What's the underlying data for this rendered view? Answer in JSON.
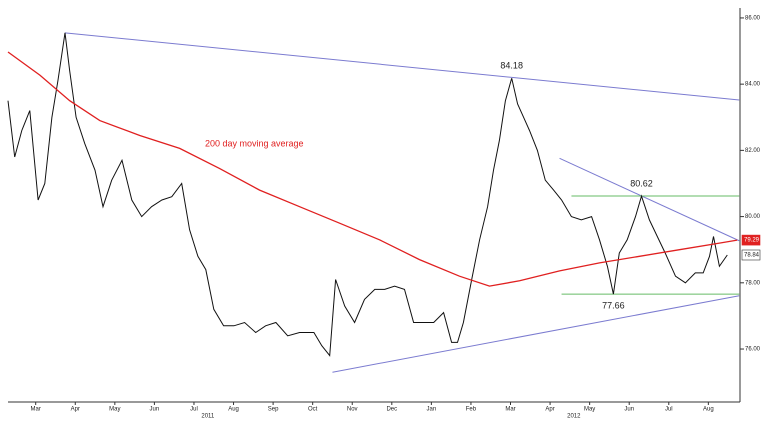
{
  "chart_data": {
    "type": "line",
    "xlim": [
      -0.2,
      18.3
    ],
    "ylim": [
      74.4,
      86.3
    ],
    "xticks": [
      {
        "value": 0.5,
        "label": "Mar"
      },
      {
        "value": 1.5,
        "label": "Apr"
      },
      {
        "value": 2.5,
        "label": "May"
      },
      {
        "value": 3.5,
        "label": "Jun"
      },
      {
        "value": 4.5,
        "label": "Jul"
      },
      {
        "value": 5.5,
        "label": "Aug"
      },
      {
        "value": 6.5,
        "label": "Sep"
      },
      {
        "value": 7.5,
        "label": "Oct"
      },
      {
        "value": 8.5,
        "label": "Nov"
      },
      {
        "value": 9.5,
        "label": "Dec"
      },
      {
        "value": 10.5,
        "label": "Jan"
      },
      {
        "value": 11.5,
        "label": "Feb"
      },
      {
        "value": 12.5,
        "label": "Mar"
      },
      {
        "value": 13.5,
        "label": "Apr"
      },
      {
        "value": 14.5,
        "label": "May"
      },
      {
        "value": 15.5,
        "label": "Jun"
      },
      {
        "value": 16.5,
        "label": "Jul"
      },
      {
        "value": 17.5,
        "label": "Aug"
      }
    ],
    "x_groups": [
      {
        "value": 4.85,
        "label": "2011"
      },
      {
        "value": 14.1,
        "label": "2012"
      }
    ],
    "yticks": [
      {
        "value": 76,
        "label": "76.00"
      },
      {
        "value": 78,
        "label": "78.00"
      },
      {
        "value": 80,
        "label": "80.00"
      },
      {
        "value": 82,
        "label": "82.00"
      },
      {
        "value": 84,
        "label": "84.00"
      },
      {
        "value": 86,
        "label": "86.00"
      }
    ],
    "series": [
      {
        "color": "#111111",
        "end_label": "78.84",
        "x": [
          -0.2,
          -0.03,
          0.15,
          0.35,
          0.56,
          0.73,
          0.91,
          1.06,
          1.24,
          1.36,
          1.52,
          1.74,
          2.0,
          2.2,
          2.42,
          2.68,
          2.93,
          3.18,
          3.43,
          3.69,
          3.94,
          4.19,
          4.39,
          4.6,
          4.8,
          5.0,
          5.25,
          5.51,
          5.78,
          6.06,
          6.31,
          6.57,
          6.87,
          7.17,
          7.53,
          7.73,
          7.93,
          8.08,
          8.31,
          8.56,
          8.81,
          9.07,
          9.32,
          9.57,
          9.82,
          10.05,
          10.3,
          10.56,
          10.81,
          11.01,
          11.16,
          11.31,
          11.52,
          11.72,
          11.92,
          12.07,
          12.22,
          12.37,
          12.53,
          12.68,
          12.83,
          12.98,
          13.18,
          13.38,
          13.59,
          13.79,
          14.04,
          14.29,
          14.55,
          14.75,
          14.95,
          15.1,
          15.25,
          15.45,
          15.66,
          15.81,
          16.01,
          16.21,
          16.41,
          16.67,
          16.92,
          17.17,
          17.37,
          17.53,
          17.63,
          17.78,
          17.98
        ],
        "values": [
          83.5,
          81.8,
          82.6,
          83.2,
          80.5,
          81.0,
          83.0,
          84.1,
          85.55,
          84.4,
          83.0,
          82.2,
          81.4,
          80.3,
          81.1,
          81.7,
          80.5,
          80.0,
          80.3,
          80.5,
          80.6,
          81.0,
          79.6,
          78.8,
          78.4,
          77.2,
          76.7,
          76.7,
          76.8,
          76.5,
          76.7,
          76.8,
          76.4,
          76.5,
          76.5,
          76.1,
          75.8,
          78.1,
          77.3,
          76.8,
          77.5,
          77.8,
          77.8,
          77.9,
          77.8,
          76.8,
          76.8,
          76.8,
          77.1,
          76.2,
          76.2,
          76.8,
          78.1,
          79.3,
          80.3,
          81.4,
          82.3,
          83.5,
          84.18,
          83.4,
          83.0,
          82.6,
          82.0,
          81.1,
          80.8,
          80.5,
          80.0,
          79.9,
          80.0,
          79.3,
          78.5,
          77.66,
          78.9,
          79.3,
          80.0,
          80.62,
          79.9,
          79.4,
          78.9,
          78.2,
          78.0,
          78.3,
          78.3,
          78.8,
          79.4,
          78.5,
          78.84
        ]
      },
      {
        "name": "200 day moving average",
        "color": "#e02020",
        "end_label": "79.29",
        "x": [
          -0.2,
          0.61,
          1.36,
          2.12,
          3.13,
          4.14,
          5.15,
          6.16,
          7.17,
          8.18,
          9.19,
          10.2,
          11.21,
          11.97,
          12.73,
          13.74,
          14.75,
          15.76,
          16.77,
          17.78,
          18.23
        ],
        "values": [
          84.97,
          84.27,
          83.5,
          82.9,
          82.45,
          82.06,
          81.45,
          80.8,
          80.3,
          79.8,
          79.3,
          78.7,
          78.2,
          77.9,
          78.06,
          78.36,
          78.6,
          78.8,
          79.0,
          79.2,
          79.29
        ]
      }
    ],
    "trendlines": [
      {
        "color": "#7b7bd0",
        "x": [
          1.24,
          18.28
        ],
        "y": [
          85.55,
          83.52
        ]
      },
      {
        "color": "#7b7bd0",
        "x": [
          8.0,
          18.28
        ],
        "y": [
          75.3,
          77.61
        ]
      },
      {
        "color": "#7b7bd0",
        "x": [
          13.74,
          18.28
        ],
        "y": [
          81.76,
          79.27
        ]
      },
      {
        "color": "#66bb66",
        "x": [
          14.04,
          18.28
        ],
        "y": [
          80.62,
          80.62
        ]
      },
      {
        "color": "#66bb66",
        "x": [
          13.79,
          18.28
        ],
        "y": [
          77.66,
          77.66
        ]
      }
    ],
    "annotations": [
      {
        "text": "84.18",
        "x": 12.53,
        "y": 84.18
      },
      {
        "text": "80.62",
        "x": 15.81,
        "y": 80.62
      },
      {
        "text": "77.66",
        "x": 15.1,
        "y": 77.66
      }
    ]
  }
}
